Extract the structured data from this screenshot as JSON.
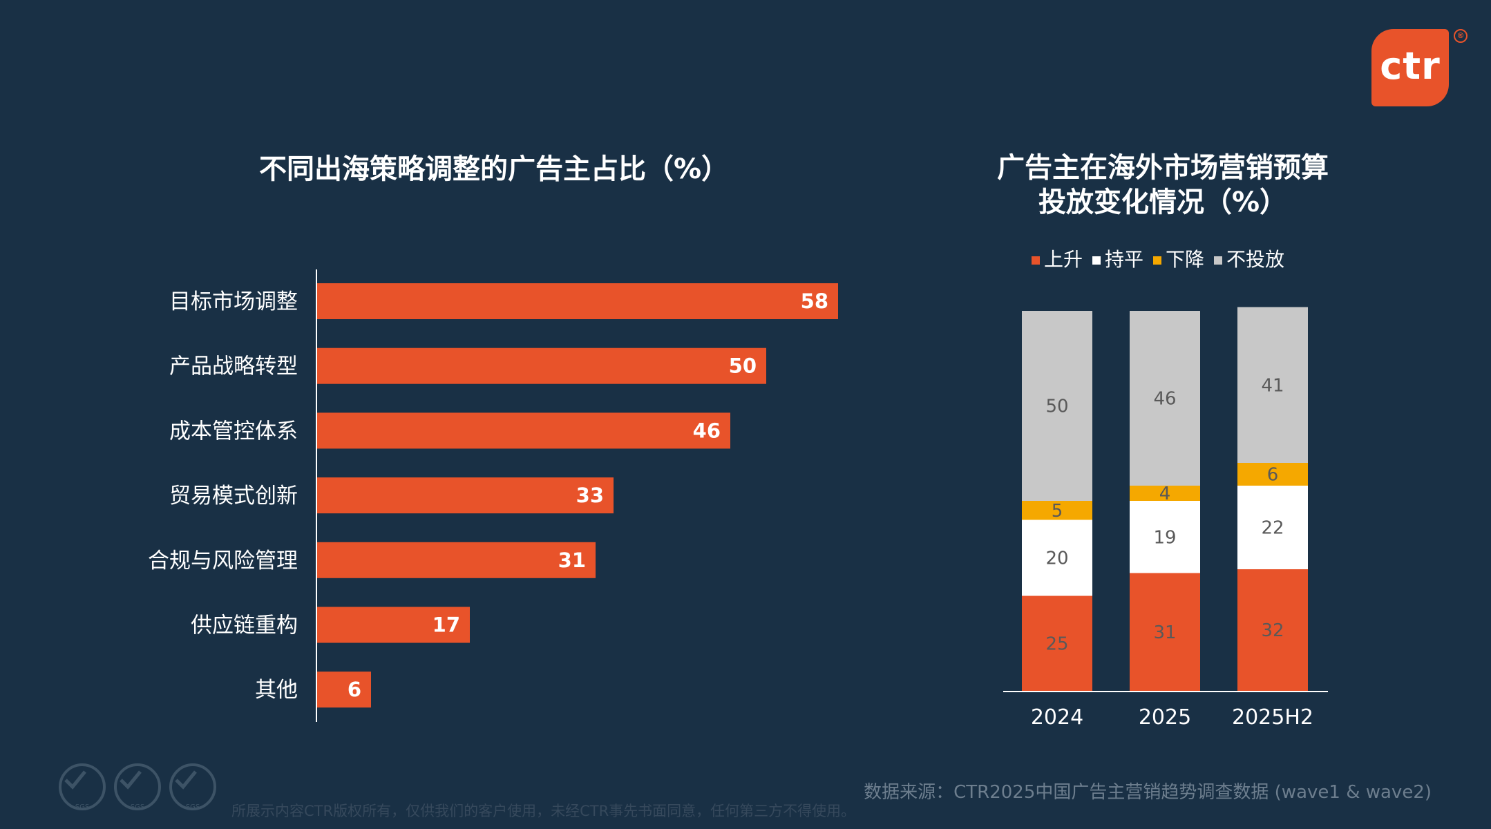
{
  "brand": {
    "logo_text": "ctr",
    "logo_reg": "®",
    "accent": "#E8532A",
    "background": "#193045"
  },
  "footer": {
    "source": "数据来源：CTR2025中国广告主营销趋势调查数据 (wave1 & wave2)",
    "disclaimer": "所展示内容CTR版权所有，仅供我们的客户使用，未经CTR事先书面同意，任何第三方不得使用。",
    "badges": [
      "SGS",
      "SGS",
      "SGS"
    ],
    "badge_icon": "checkmark-seal-icon"
  },
  "chart_data": [
    {
      "type": "bar",
      "orientation": "horizontal",
      "title": "不同出海策略调整的广告主占比（%）",
      "categories": [
        "目标市场调整",
        "产品战略转型",
        "成本管控体系",
        "贸易模式创新",
        "合规与风险管理",
        "供应链重构",
        "其他"
      ],
      "values": [
        58,
        50,
        46,
        33,
        31,
        17,
        6
      ],
      "bar_color": "#E8532A",
      "xlim": [
        0,
        100
      ],
      "grid": false,
      "data_labels": true
    },
    {
      "type": "bar",
      "stacked": true,
      "title": "广告主在海外市场营销预算投放变化情况（%）",
      "categories": [
        "2024",
        "2025",
        "2025H2"
      ],
      "series": [
        {
          "name": "上升",
          "color": "#E8532A",
          "values": [
            25,
            31,
            32
          ]
        },
        {
          "name": "持平",
          "color": "#FFFFFF",
          "values": [
            20,
            19,
            22
          ]
        },
        {
          "name": "下降",
          "color": "#F5A800",
          "values": [
            5,
            4,
            6
          ]
        },
        {
          "name": "不投放",
          "color": "#C8C8C8",
          "values": [
            50,
            46,
            41
          ]
        }
      ],
      "ylim": [
        0,
        100
      ],
      "legend": "top",
      "grid": false,
      "data_labels": true
    }
  ]
}
